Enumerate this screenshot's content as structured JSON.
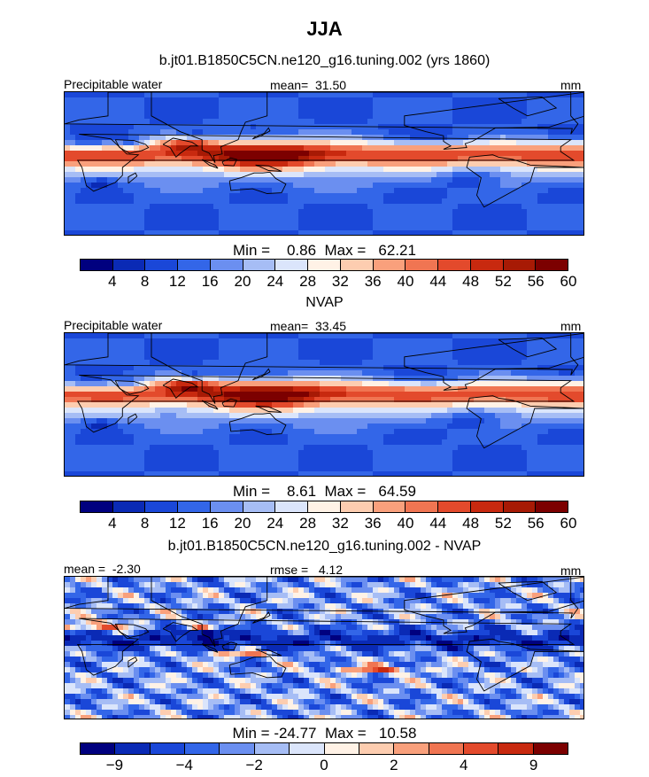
{
  "header": {
    "title": "JJA",
    "subtitle": "b.jt01.B1850C5CN.ne120_g16.tuning.002 (yrs 1860)"
  },
  "panels": [
    {
      "id": "model",
      "left_label": "Precipitable water",
      "center_label": "mean=  31.50",
      "right_label": "mm",
      "stats": "Min =    0.86  Max =   62.21",
      "scale": "abs",
      "mean": 31.5,
      "min": 0.86,
      "max": 62.21
    },
    {
      "id": "obs",
      "title": "NVAP",
      "left_label": "Precipitable water",
      "center_label": "mean=  33.45",
      "right_label": "mm",
      "stats": "Min =    8.61  Max =   64.59",
      "scale": "abs",
      "mean": 33.45,
      "min": 8.61,
      "max": 64.59
    },
    {
      "id": "diff",
      "title": "b.jt01.B1850C5CN.ne120_g16.tuning.002 - NVAP",
      "left_label": "mean =  -2.30",
      "center_label": "rmse =   4.12",
      "right_label": "mm",
      "stats": "Min = -24.77  Max =   10.58",
      "scale": "diff",
      "mean": -2.3,
      "rmse": 4.12,
      "min": -24.77,
      "max": 10.58
    }
  ],
  "colorbars": {
    "abs": {
      "colors": [
        "#00007f",
        "#0a2ab5",
        "#1a47d8",
        "#3366e8",
        "#6b8ff0",
        "#a6bdf5",
        "#dbe5fb",
        "#fff2e6",
        "#fdcdb0",
        "#f9a07c",
        "#f07552",
        "#e34a2c",
        "#c8290f",
        "#a71a05",
        "#7c0000"
      ],
      "labels": [
        "4",
        "8",
        "12",
        "16",
        "20",
        "24",
        "28",
        "32",
        "36",
        "40",
        "44",
        "48",
        "52",
        "56",
        "60"
      ]
    },
    "diff": {
      "colors": [
        "#00007f",
        "#0a2ab5",
        "#1a47d8",
        "#3366e8",
        "#6b8ff0",
        "#a6bdf5",
        "#dbe5fb",
        "#fff2e6",
        "#fdcdb0",
        "#f9a07c",
        "#f07552",
        "#e34a2c",
        "#c8290f",
        "#7c0000"
      ],
      "labels": [
        "−9",
        "−4",
        "−2",
        "0",
        "2",
        "4",
        "9"
      ],
      "label_positions": [
        1,
        3,
        5,
        7,
        9,
        11,
        13
      ]
    }
  }
}
